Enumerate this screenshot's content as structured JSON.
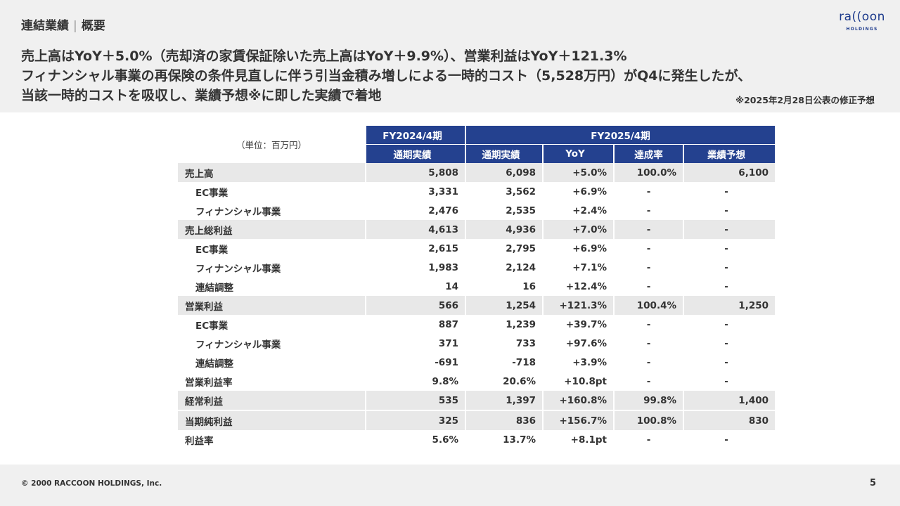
{
  "header": {
    "section": "連結業績",
    "subsection": "概要",
    "logo_word": "ra((oon",
    "logo_sub": "HOLDINGS"
  },
  "headline": {
    "line1": "売上高はYoY＋5.0%（売却済の家賃保証除いた売上高はYoY＋9.9%）、営業利益はYoY＋121.3%",
    "line2": "フィナンシャル事業の再保険の条件見直しに伴う引当金積み増しによる一時的コスト（5,528万円）がQ4に発生したが、",
    "line3": "当該一時的コストを吸収し、業績予想※に即した実績で着地",
    "note": "※2025年2月28日公表の修正予想"
  },
  "table": {
    "unit": "（単位：百万円）",
    "period_prev": "FY2024/4期",
    "period_curr": "FY2025/4期",
    "col_prev_actual": "通期実績",
    "col_curr_actual": "通期実績",
    "col_yoy": "YoY",
    "col_rate": "達成率",
    "col_forecast": "業績予想",
    "rows": [
      {
        "label": "売上高",
        "prev": "5,808",
        "curr": "6,098",
        "yoy": "+5.0%",
        "rate": "100.0%",
        "forecast": "6,100"
      },
      {
        "label": "EC事業",
        "prev": "3,331",
        "curr": "3,562",
        "yoy": "+6.9%",
        "rate": "-",
        "forecast": "-"
      },
      {
        "label": "フィナンシャル事業",
        "prev": "2,476",
        "curr": "2,535",
        "yoy": "+2.4%",
        "rate": "-",
        "forecast": "-"
      },
      {
        "label": "売上総利益",
        "prev": "4,613",
        "curr": "4,936",
        "yoy": "+7.0%",
        "rate": "-",
        "forecast": "-"
      },
      {
        "label": "EC事業",
        "prev": "2,615",
        "curr": "2,795",
        "yoy": "+6.9%",
        "rate": "-",
        "forecast": "-"
      },
      {
        "label": "フィナンシャル事業",
        "prev": "1,983",
        "curr": "2,124",
        "yoy": "+7.1%",
        "rate": "-",
        "forecast": "-"
      },
      {
        "label": "連結調整",
        "prev": "14",
        "curr": "16",
        "yoy": "+12.4%",
        "rate": "-",
        "forecast": "-"
      },
      {
        "label": "営業利益",
        "prev": "566",
        "curr": "1,254",
        "yoy": "+121.3%",
        "rate": "100.4%",
        "forecast": "1,250"
      },
      {
        "label": "EC事業",
        "prev": "887",
        "curr": "1,239",
        "yoy": "+39.7%",
        "rate": "-",
        "forecast": "-"
      },
      {
        "label": "フィナンシャル事業",
        "prev": "371",
        "curr": "733",
        "yoy": "+97.6%",
        "rate": "-",
        "forecast": "-"
      },
      {
        "label": "連結調整",
        "prev": "-691",
        "curr": "-718",
        "yoy": "+3.9%",
        "rate": "-",
        "forecast": "-"
      },
      {
        "label": "営業利益率",
        "prev": "9.8%",
        "curr": "20.6%",
        "yoy": "+10.8pt",
        "rate": "-",
        "forecast": "-"
      },
      {
        "label": "経常利益",
        "prev": "535",
        "curr": "1,397",
        "yoy": "+160.8%",
        "rate": "99.8%",
        "forecast": "1,400"
      },
      {
        "label": "当期純利益",
        "prev": "325",
        "curr": "836",
        "yoy": "+156.7%",
        "rate": "100.8%",
        "forecast": "830"
      },
      {
        "label": "利益率",
        "prev": "5.6%",
        "curr": "13.7%",
        "yoy": "+8.1pt",
        "rate": "-",
        "forecast": "-"
      }
    ]
  },
  "footer": {
    "copyright": "© 2000 RACCOON HOLDINGS, Inc.",
    "page": "5"
  },
  "colors": {
    "header_blue": "#24418f",
    "row_shade": "#e8e8e8",
    "band_gray": "#f0f0f0",
    "logo_blue": "#1c3a8c"
  }
}
